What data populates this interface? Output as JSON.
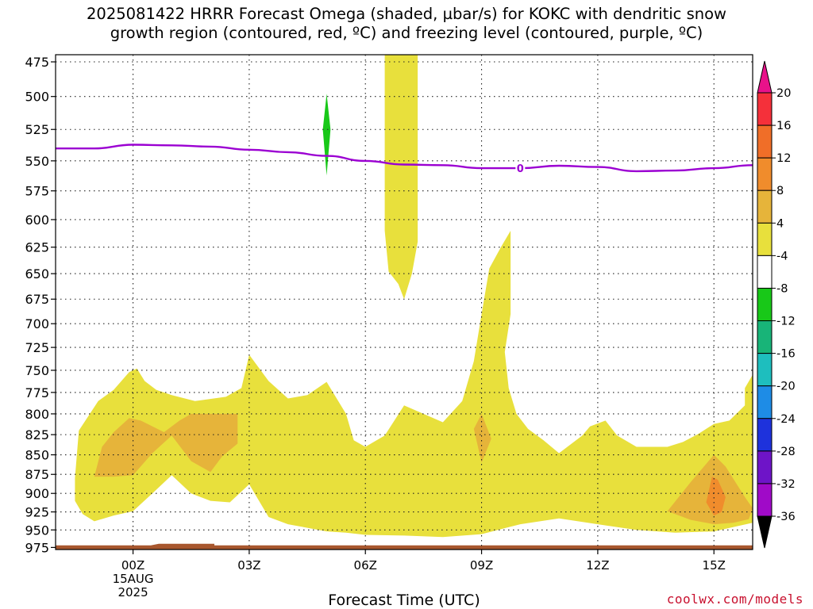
{
  "title_line1": "2025081422 HRRR Forecast Omega (shaded, µbar/s) for KOKC with dendritic snow",
  "title_line2": "growth region (contoured, red, ºC) and freezing level (contoured, purple, ºC)",
  "credit": "coolwx.com/models",
  "chart_data": {
    "type": "area",
    "title": "2025081422 HRRR Forecast Omega (shaded, µbar/s) for KOKC with dendritic snow growth region (contoured, red, ºC) and freezing level (contoured, purple, ºC)",
    "xlabel": "Forecast Time (UTC)",
    "ylabel": "",
    "x_ticks": [
      {
        "hour": 0,
        "label": "00Z",
        "sub1": "15AUG",
        "sub2": "2025"
      },
      {
        "hour": 3,
        "label": "03Z"
      },
      {
        "hour": 6,
        "label": "06Z"
      },
      {
        "hour": 9,
        "label": "09Z"
      },
      {
        "hour": 12,
        "label": "12Z"
      },
      {
        "hour": 15,
        "label": "15Z"
      }
    ],
    "xlim_hours": [
      -2,
      16
    ],
    "y_ticks": [
      475,
      500,
      525,
      550,
      575,
      600,
      625,
      650,
      675,
      700,
      725,
      750,
      775,
      800,
      825,
      850,
      875,
      900,
      925,
      950,
      975
    ],
    "ylim_hPa": [
      470,
      978
    ],
    "y_scale": "log-pressure (inverted)",
    "grid": "dotted",
    "colorbar": {
      "units": "µbar/s",
      "labels": [
        "20",
        "16",
        "12",
        "8",
        "4",
        "-4",
        "-8",
        "-12",
        "-16",
        "-20",
        "-24",
        "-28",
        "-32",
        "-36"
      ],
      "colors": [
        "#e8128a",
        "#f5303a",
        "#f06e28",
        "#f08c2c",
        "#e6b43a",
        "#e8e03c",
        "#ffffff",
        "#18c818",
        "#18b478",
        "#1ebebe",
        "#1e8ce6",
        "#1e32dc",
        "#6e14c8",
        "#a00ac8",
        "#a8a8a8",
        "#000000"
      ]
    },
    "freezing_level": {
      "label": "0",
      "color": "#9b00d2",
      "points": [
        [
          -2,
          540
        ],
        [
          -1,
          540
        ],
        [
          0,
          537
        ],
        [
          1,
          537.5
        ],
        [
          2,
          538.5
        ],
        [
          3,
          541
        ],
        [
          4,
          543
        ],
        [
          5,
          546
        ],
        [
          6,
          550
        ],
        [
          7,
          553
        ],
        [
          8,
          553.5
        ],
        [
          9,
          556
        ],
        [
          10,
          556
        ],
        [
          11,
          554
        ],
        [
          12,
          555
        ],
        [
          13,
          558.5
        ],
        [
          14,
          558
        ],
        [
          15,
          556
        ],
        [
          16,
          553.5
        ]
      ]
    },
    "regions": [
      {
        "name": "omega 4-8 low level",
        "color": "#e8e03c",
        "points": [
          [
            -1.5,
            880
          ],
          [
            -1.4,
            820
          ],
          [
            -0.9,
            785
          ],
          [
            -0.5,
            772
          ],
          [
            -0.3,
            762
          ],
          [
            -0.1,
            752
          ],
          [
            0.1,
            748
          ],
          [
            0.3,
            762
          ],
          [
            0.6,
            772
          ],
          [
            1.0,
            778
          ],
          [
            1.6,
            785
          ],
          [
            2.4,
            780
          ],
          [
            2.8,
            770
          ],
          [
            3.0,
            733
          ],
          [
            3.5,
            762
          ],
          [
            4.0,
            782
          ],
          [
            4.5,
            778
          ],
          [
            5.0,
            763
          ],
          [
            5.5,
            800
          ],
          [
            5.7,
            832
          ],
          [
            6.0,
            840
          ],
          [
            6.5,
            826
          ],
          [
            7.0,
            790
          ],
          [
            7.5,
            800
          ],
          [
            8.0,
            810
          ],
          [
            8.5,
            785
          ],
          [
            8.8,
            740
          ],
          [
            9.0,
            690
          ],
          [
            9.2,
            645
          ],
          [
            9.5,
            625
          ],
          [
            9.75,
            610
          ],
          [
            9.75,
            690
          ],
          [
            9.6,
            730
          ],
          [
            9.7,
            770
          ],
          [
            9.9,
            800
          ],
          [
            10.2,
            818
          ],
          [
            10.6,
            832
          ],
          [
            11.0,
            848
          ],
          [
            11.6,
            826
          ],
          [
            11.8,
            815
          ],
          [
            12.2,
            808
          ],
          [
            12.5,
            826
          ],
          [
            13.0,
            840
          ],
          [
            13.8,
            840
          ],
          [
            14.2,
            834
          ],
          [
            14.6,
            824
          ],
          [
            15.0,
            812
          ],
          [
            15.4,
            808
          ],
          [
            15.8,
            790
          ],
          [
            15.8,
            770
          ],
          [
            16.0,
            755
          ],
          [
            16.0,
            940
          ],
          [
            15.0,
            952
          ],
          [
            14.0,
            954
          ],
          [
            13.0,
            950
          ],
          [
            12.0,
            942
          ],
          [
            11.0,
            934
          ],
          [
            10.0,
            942
          ],
          [
            9.0,
            956
          ],
          [
            8.0,
            960
          ],
          [
            7.0,
            958
          ],
          [
            6.0,
            957
          ],
          [
            5.5,
            954
          ],
          [
            5.0,
            952
          ],
          [
            4.0,
            942
          ],
          [
            3.5,
            932
          ],
          [
            3.0,
            888
          ],
          [
            2.5,
            912
          ],
          [
            2.0,
            910
          ],
          [
            1.5,
            900
          ],
          [
            1.0,
            876
          ],
          [
            0.5,
            900
          ],
          [
            0.0,
            924
          ],
          [
            -0.5,
            930
          ],
          [
            -1.0,
            938
          ],
          [
            -1.3,
            928
          ],
          [
            -1.5,
            910
          ]
        ]
      },
      {
        "name": "omega 4-8 upper column",
        "color": "#e8e03c",
        "points": [
          [
            6.5,
            470
          ],
          [
            7.35,
            470
          ],
          [
            7.35,
            620
          ],
          [
            7.2,
            650
          ],
          [
            7.0,
            675
          ],
          [
            6.85,
            660
          ],
          [
            6.6,
            648
          ],
          [
            6.5,
            610
          ]
        ]
      },
      {
        "name": "omega 8-12 west",
        "color": "#e6b43a",
        "points": [
          [
            -1.0,
            878
          ],
          [
            -0.8,
            840
          ],
          [
            -0.5,
            822
          ],
          [
            -0.1,
            805
          ],
          [
            0.2,
            808
          ],
          [
            0.8,
            822
          ],
          [
            1.2,
            808
          ],
          [
            1.5,
            800
          ],
          [
            2.7,
            800
          ],
          [
            2.7,
            836
          ],
          [
            2.3,
            852
          ],
          [
            2.0,
            872
          ],
          [
            1.5,
            858
          ],
          [
            1.0,
            826
          ],
          [
            0.5,
            848
          ],
          [
            0.0,
            876
          ],
          [
            -0.5,
            878
          ]
        ]
      },
      {
        "name": "omega 8-12 09Z",
        "color": "#e6b43a",
        "points": [
          [
            8.8,
            818
          ],
          [
            9.0,
            800
          ],
          [
            9.25,
            830
          ],
          [
            9.0,
            860
          ]
        ]
      },
      {
        "name": "omega 8-12 east",
        "color": "#e6b43a",
        "points": [
          [
            13.8,
            924
          ],
          [
            14.4,
            885
          ],
          [
            15.0,
            850
          ],
          [
            15.3,
            865
          ],
          [
            15.8,
            905
          ],
          [
            16.0,
            920
          ],
          [
            15.9,
            935
          ],
          [
            15.5,
            940
          ],
          [
            15.0,
            942
          ],
          [
            14.4,
            936
          ]
        ]
      },
      {
        "name": "omega 12-16 east",
        "color": "#f08c2c",
        "points": [
          [
            14.8,
            912
          ],
          [
            14.95,
            878
          ],
          [
            15.1,
            882
          ],
          [
            15.3,
            905
          ],
          [
            15.2,
            925
          ],
          [
            15.0,
            930
          ]
        ]
      },
      {
        "name": "omega negative",
        "color": "#18c818",
        "points": [
          [
            5.0,
            498
          ],
          [
            5.1,
            525
          ],
          [
            5.0,
            562
          ],
          [
            4.9,
            525
          ]
        ]
      }
    ],
    "terrain": {
      "color": "#a8572e",
      "top_hPa": 972
    }
  }
}
